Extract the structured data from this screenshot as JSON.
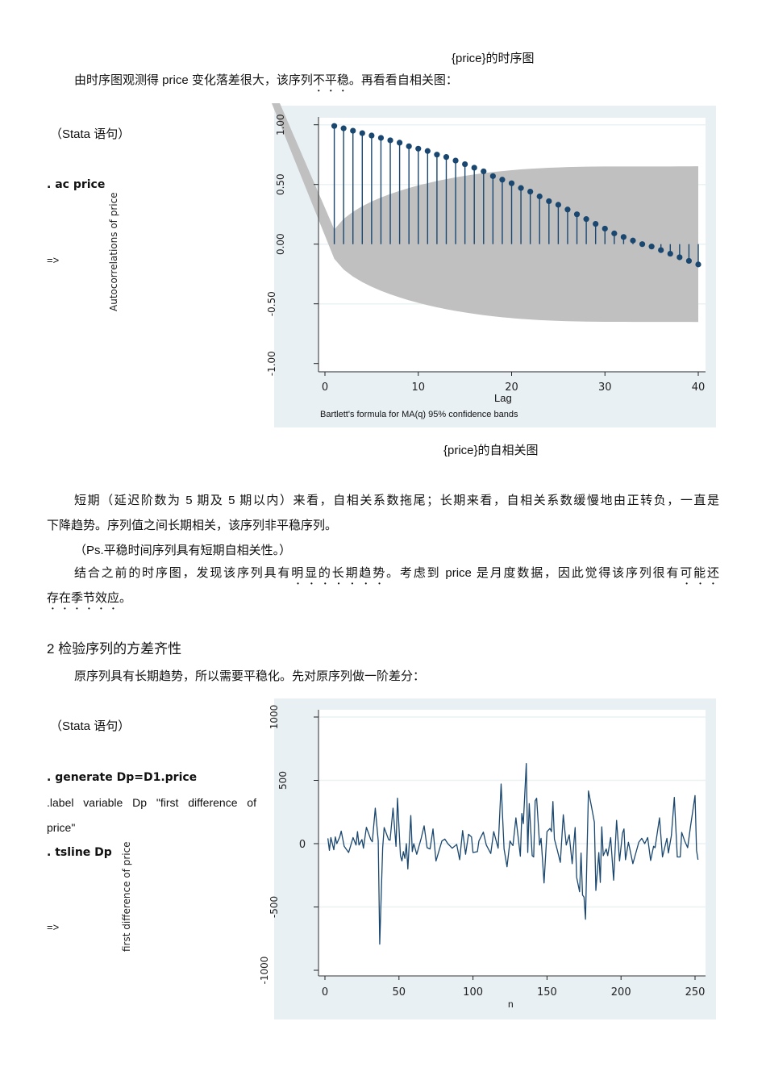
{
  "caption_timeseries": "{price}的时序图",
  "intro_line": {
    "before": "由时序图观测得 price 变化落差很大，该序列",
    "emph": "不平稳",
    "after": "。再看看自相关图："
  },
  "section1": {
    "stata_label": "（Stata 语句）",
    "command": ". ac price",
    "arrow": "=>",
    "caption": "{price}的自相关图"
  },
  "analysis": {
    "line1": "短期（延迟阶数为 5 期及 5 期以内）来看，自相关系数拖尾；长期来看，自相关系数缓慢地由正转负，一直是",
    "line2": "下降趋势。序列值之间长期相关，该序列非平稳序列。",
    "line3": "（Ps.平稳时间序列具有短期自相关性。）",
    "line4": {
      "a": "结合之前的时序图，发现该序列具有",
      "b": "明显的长期趋势",
      "c": "。考虑到 price 是月度数据，因此觉得该序列很有",
      "d": "可能还"
    },
    "line5": "存在季节效应",
    "line5_end": "。"
  },
  "section2": {
    "heading": "2 检验序列的方差齐性",
    "intro": "原序列具有长期趋势，所以需要平稳化。先对原序列做一阶差分：",
    "stata_label": "（Stata 语句）",
    "cmd1": ". generate Dp=D1.price",
    "cmd2_line1": ".label variable Dp \"first difference of",
    "cmd2_line2": "price\"",
    "cmd3": ". tsline Dp",
    "arrow": "=>"
  },
  "chart_data": [
    {
      "type": "bar",
      "subtype": "acf-stem",
      "ylabel": "Autocorrelations of price",
      "xlabel": "Lag",
      "note": "Bartlett's formula for MA(q) 95% confidence bands",
      "xlim": [
        0,
        40
      ],
      "ylim": [
        -1,
        1
      ],
      "xticks": [
        "0",
        "10",
        "20",
        "30",
        "40"
      ],
      "yticks": [
        "1.00",
        "0.50",
        "0.00",
        "-0.50",
        "-1.00"
      ],
      "grid": true,
      "lags": [
        1,
        2,
        3,
        4,
        5,
        6,
        7,
        8,
        9,
        10,
        11,
        12,
        13,
        14,
        15,
        16,
        17,
        18,
        19,
        20,
        21,
        22,
        23,
        24,
        25,
        26,
        27,
        28,
        29,
        30,
        31,
        32,
        33,
        34,
        35,
        36,
        37,
        38,
        39,
        40
      ],
      "values": [
        0.99,
        0.97,
        0.95,
        0.93,
        0.91,
        0.89,
        0.87,
        0.85,
        0.82,
        0.8,
        0.78,
        0.75,
        0.73,
        0.7,
        0.67,
        0.64,
        0.61,
        0.57,
        0.54,
        0.51,
        0.47,
        0.44,
        0.4,
        0.36,
        0.33,
        0.29,
        0.25,
        0.21,
        0.17,
        0.13,
        0.09,
        0.06,
        0.03,
        0.0,
        -0.02,
        -0.05,
        -0.08,
        -0.11,
        -0.14,
        -0.17
      ],
      "colors": {
        "marker": "#1a476f",
        "band": "#c0c0c0",
        "background": "#e8f0f4"
      }
    },
    {
      "type": "line",
      "ylabel": "first difference of price",
      "xlabel": "n",
      "xlim": [
        0,
        252
      ],
      "ylim": [
        -1000,
        1000
      ],
      "xticks": [
        "0",
        "50",
        "100",
        "150",
        "200",
        "250"
      ],
      "yticks": [
        "1000",
        "500",
        "0",
        "-500",
        "-1000"
      ],
      "grid": true,
      "x": [
        2,
        3,
        4,
        6,
        7,
        8,
        10,
        11,
        13,
        16,
        19,
        21,
        22,
        23,
        25,
        26,
        28,
        31,
        32,
        34,
        36,
        37,
        39,
        40,
        43,
        44,
        46,
        48,
        49,
        51,
        52,
        53,
        54,
        55,
        56,
        58,
        59,
        60,
        62,
        65,
        67,
        69,
        71,
        73,
        75,
        79,
        81,
        83,
        86,
        89,
        91,
        93,
        95,
        97,
        99,
        100,
        103,
        104,
        107,
        109,
        112,
        114,
        117,
        119,
        121,
        123,
        125,
        126,
        127,
        129,
        132,
        133,
        134,
        136,
        137,
        138,
        140,
        141,
        142,
        143,
        145,
        146,
        148,
        150,
        152,
        153,
        154,
        155,
        157,
        159,
        161,
        163,
        165,
        167,
        169,
        170,
        172,
        173,
        174,
        175,
        176,
        178,
        180,
        182,
        183,
        185,
        186,
        187,
        188,
        190,
        191,
        193,
        195,
        197,
        199,
        201,
        202,
        203,
        205,
        208,
        210,
        212,
        214,
        216,
        218,
        220,
        222,
        223,
        226,
        228,
        231,
        232,
        234,
        236,
        238,
        240,
        241,
        243,
        245,
        247,
        250,
        251,
        252
      ],
      "y": [
        42,
        -53,
        48,
        -48,
        53,
        0,
        53,
        99,
        -21,
        -70,
        48,
        -11,
        95,
        -11,
        32,
        -36,
        129,
        32,
        15,
        280,
        21,
        -794,
        -32,
        127,
        32,
        27,
        280,
        -21,
        359,
        -95,
        -137,
        -63,
        -116,
        0,
        -200,
        222,
        -63,
        0,
        -84,
        42,
        141,
        -32,
        -42,
        116,
        -137,
        21,
        36,
        0,
        -36,
        -6,
        -127,
        103,
        -84,
        74,
        53,
        -70,
        -63,
        21,
        91,
        -11,
        -78,
        95,
        -36,
        471,
        -42,
        -183,
        21,
        0,
        -15,
        204,
        -99,
        238,
        158,
        633,
        -70,
        316,
        -95,
        -105,
        338,
        359,
        -11,
        42,
        -310,
        95,
        120,
        95,
        333,
        36,
        -53,
        -148,
        228,
        -11,
        70,
        -158,
        127,
        -264,
        -380,
        -74,
        -406,
        -422,
        -597,
        416,
        295,
        169,
        -369,
        -70,
        -306,
        133,
        -95,
        -42,
        -95,
        48,
        -289,
        184,
        -137,
        84,
        116,
        -127,
        11,
        -158,
        -74,
        11,
        42,
        0,
        48,
        -133,
        -21,
        -32,
        204,
        -105,
        42,
        -74,
        63,
        365,
        -105,
        -105,
        89,
        21,
        -32,
        141,
        380,
        -53,
        -127
      ],
      "colors": {
        "line": "#1a476f",
        "background": "#e8f0f4"
      }
    }
  ]
}
